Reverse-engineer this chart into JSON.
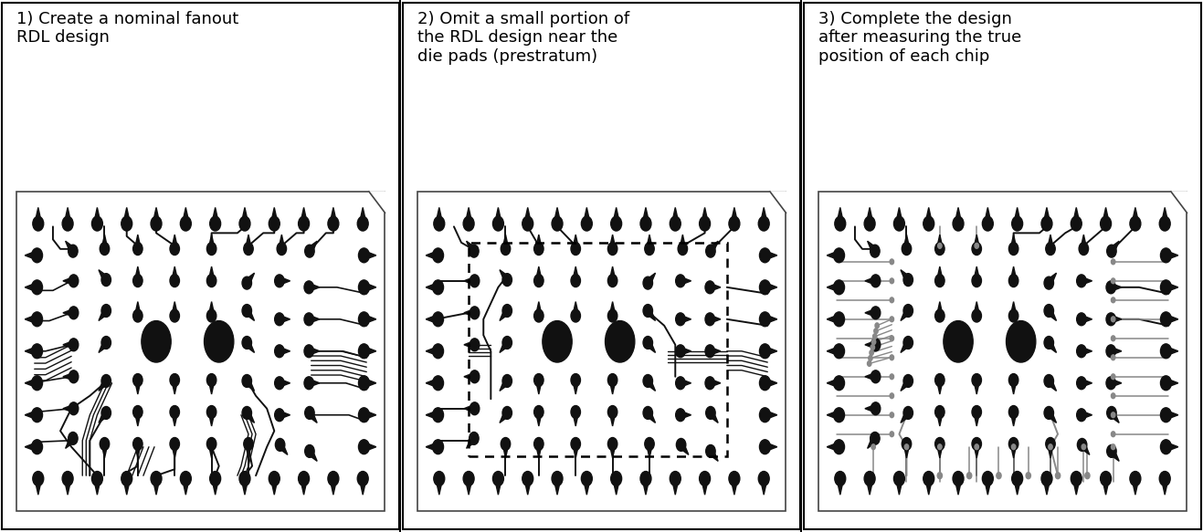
{
  "panel_titles": [
    "1) Create a nominal fanout\nRDL design",
    "2) Omit a small portion of\nthe RDL design near the\ndie pads (prestratum)",
    "3) Complete the design\nafter measuring the true\nposition of each chip"
  ],
  "bg_color": "#f2f2f2",
  "black": "#111111",
  "gray": "#888888",
  "fig_width": 13.17,
  "fig_height": 5.83,
  "title_fontsize": 13.0
}
